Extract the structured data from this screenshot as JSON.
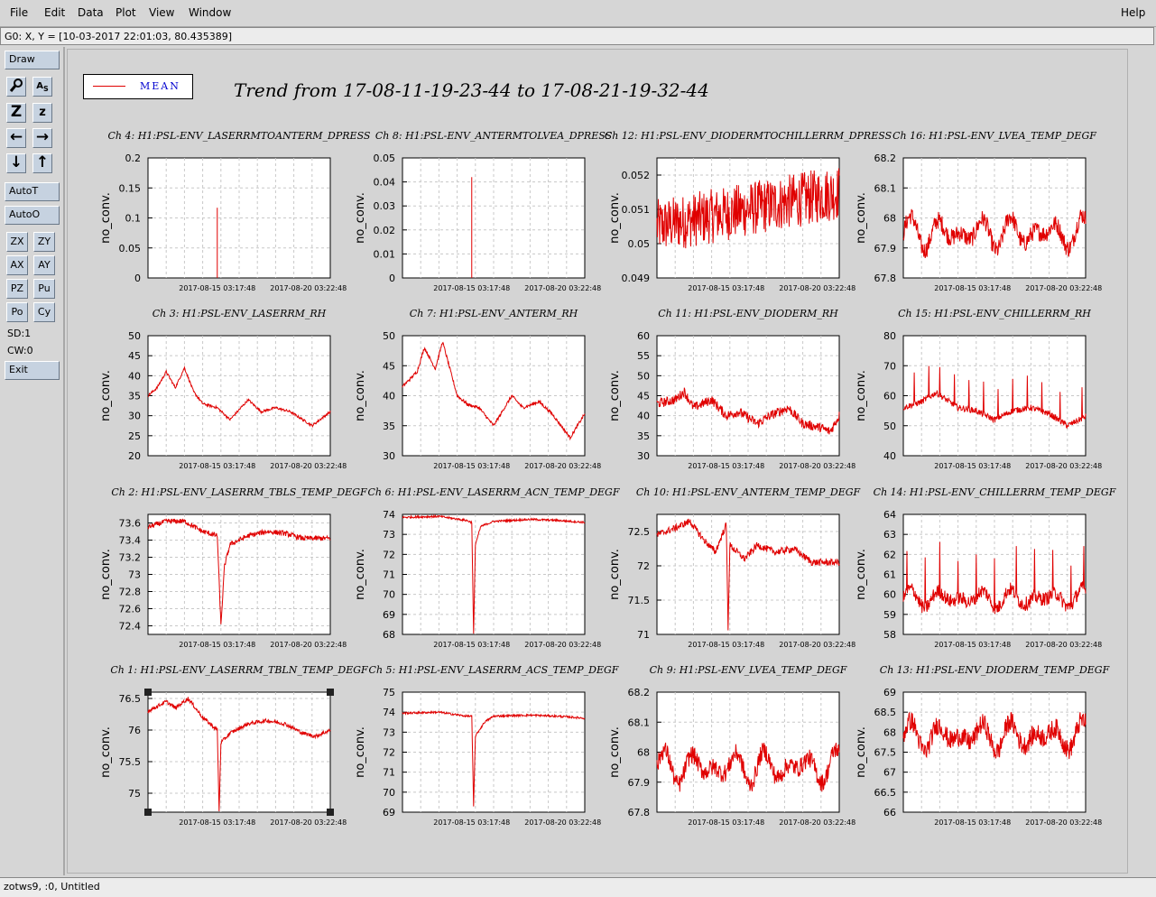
{
  "menu": {
    "file": "File",
    "edit": "Edit",
    "data": "Data",
    "plot": "Plot",
    "view": "View",
    "window": "Window",
    "help": "Help"
  },
  "coord_readout": "G0: X, Y = [10-03-2017 22:01:03, 80.435389]",
  "toolbar": {
    "draw": "Draw",
    "autot": "AutoT",
    "autoo": "AutoO",
    "zx": "ZX",
    "zy": "ZY",
    "ax": "AX",
    "ay": "AY",
    "pz": "PZ",
    "pu": "Pu",
    "po": "Po",
    "cy": "Cy",
    "sd": "SD:1",
    "cw": "CW:0",
    "exit": "Exit",
    "icons": [
      "magnify-icon",
      "text-scale-icon",
      "zoom-z-icon",
      "zoom-small-z-icon",
      "arrow-left-icon",
      "arrow-right-icon",
      "arrow-down-icon",
      "arrow-up-icon"
    ]
  },
  "legend": {
    "label": "MEAN",
    "color": "#e00000"
  },
  "main_title": "Trend from 17-08-11-19-23-44 to 17-08-21-19-32-44",
  "status": "zotws9, :0, Untitled",
  "chart_data": [
    {
      "type": "line",
      "title": "Ch 4: H1:PSL-ENV_LASERRMTOANTERM_DPRESS",
      "ylabel": "no_conv.",
      "x_ticks": [
        "2017-08-15 03:17:48",
        "2017-08-20 03:22:48"
      ],
      "y_ticks": [
        "0",
        "0.05",
        "0.1",
        "0.15",
        "0.2"
      ],
      "ylim": [
        0,
        0.2
      ],
      "pattern": "spike",
      "base": 0,
      "noise": 0,
      "spike_at": 0.38,
      "spike_to": 0.117,
      "color": "#e00000"
    },
    {
      "type": "line",
      "title": "Ch 8: H1:PSL-ENV_ANTERMTOLVEA_DPRESS",
      "ylabel": "no_conv.",
      "x_ticks": [
        "2017-08-15 03:17:48",
        "2017-08-20 03:22:48"
      ],
      "y_ticks": [
        "0",
        "0.01",
        "0.02",
        "0.03",
        "0.04",
        "0.05"
      ],
      "ylim": [
        0,
        0.05
      ],
      "pattern": "spike",
      "base": 0,
      "noise": 0,
      "spike_at": 0.38,
      "spike_to": 0.042,
      "color": "#e00000"
    },
    {
      "type": "line",
      "title": "Ch 12: H1:PSL-ENV_DIODERMTOCHILLERRM_DPRESS",
      "ylabel": "no_conv.",
      "x_ticks": [
        "2017-08-15 03:17:48",
        "2017-08-20 03:22:48"
      ],
      "y_ticks": [
        "0.049",
        "0.05",
        "0.051",
        "0.052"
      ],
      "ylim": [
        0.049,
        0.0525
      ],
      "pattern": "band",
      "base": 0.0505,
      "trend": 0.001,
      "noise": 0.0008,
      "color": "#e00000"
    },
    {
      "type": "line",
      "title": "Ch 16: H1:PSL-ENV_LVEA_TEMP_DEGF",
      "ylabel": "no_conv.",
      "x_ticks": [
        "2017-08-15 03:17:48",
        "2017-08-20 03:22:48"
      ],
      "y_ticks": [
        "67.8",
        "67.9",
        "68",
        "68.1",
        "68.2"
      ],
      "ylim": [
        67.8,
        68.2
      ],
      "pattern": "wavy",
      "base": 67.95,
      "amp": 0.06,
      "noise": 0.03,
      "color": "#e00000"
    },
    {
      "type": "line",
      "title": "Ch 3: H1:PSL-ENV_LASERRM_RH",
      "ylabel": "no_conv.",
      "x_ticks": [
        "2017-08-15 03:17:48",
        "2017-08-20 03:22:48"
      ],
      "y_ticks": [
        "20",
        "25",
        "30",
        "35",
        "40",
        "45",
        "50"
      ],
      "ylim": [
        20,
        50
      ],
      "pattern": "path",
      "path": [
        [
          0,
          35
        ],
        [
          0.05,
          37
        ],
        [
          0.1,
          41
        ],
        [
          0.15,
          37
        ],
        [
          0.2,
          42
        ],
        [
          0.25,
          36
        ],
        [
          0.3,
          33
        ],
        [
          0.38,
          32
        ],
        [
          0.45,
          29
        ],
        [
          0.55,
          34
        ],
        [
          0.62,
          31
        ],
        [
          0.7,
          32
        ],
        [
          0.78,
          31
        ],
        [
          0.85,
          29
        ],
        [
          0.9,
          27.5
        ],
        [
          1,
          31
        ]
      ],
      "noise": 0.3,
      "color": "#e00000"
    },
    {
      "type": "line",
      "title": "Ch 7: H1:PSL-ENV_ANTERM_RH",
      "ylabel": "no_conv.",
      "x_ticks": [
        "2017-08-15 03:17:48",
        "2017-08-20 03:22:48"
      ],
      "y_ticks": [
        "30",
        "35",
        "40",
        "45",
        "50"
      ],
      "ylim": [
        30,
        50
      ],
      "pattern": "path",
      "path": [
        [
          0,
          41.5
        ],
        [
          0.08,
          44
        ],
        [
          0.12,
          48
        ],
        [
          0.18,
          44.5
        ],
        [
          0.22,
          49
        ],
        [
          0.3,
          40
        ],
        [
          0.36,
          38.5
        ],
        [
          0.42,
          38
        ],
        [
          0.5,
          35
        ],
        [
          0.6,
          40
        ],
        [
          0.66,
          38
        ],
        [
          0.75,
          39
        ],
        [
          0.82,
          37
        ],
        [
          0.92,
          33
        ],
        [
          1,
          37
        ]
      ],
      "noise": 0.25,
      "color": "#e00000"
    },
    {
      "type": "line",
      "title": "Ch 11: H1:PSL-ENV_DIODERM_RH",
      "ylabel": "no_conv.",
      "x_ticks": [
        "2017-08-15 03:17:48",
        "2017-08-20 03:22:48"
      ],
      "y_ticks": [
        "30",
        "35",
        "40",
        "45",
        "50",
        "55",
        "60"
      ],
      "ylim": [
        30,
        60
      ],
      "pattern": "path",
      "path": [
        [
          0,
          43
        ],
        [
          0.1,
          44
        ],
        [
          0.15,
          46
        ],
        [
          0.2,
          42
        ],
        [
          0.3,
          44
        ],
        [
          0.38,
          40
        ],
        [
          0.45,
          41
        ],
        [
          0.55,
          38
        ],
        [
          0.62,
          40
        ],
        [
          0.72,
          42
        ],
        [
          0.8,
          38
        ],
        [
          0.9,
          37
        ],
        [
          0.95,
          36
        ],
        [
          1,
          40
        ]
      ],
      "noise": 1.2,
      "color": "#e00000"
    },
    {
      "type": "line",
      "title": "Ch 15: H1:PSL-ENV_CHILLERRM_RH",
      "ylabel": "no_conv.",
      "x_ticks": [
        "2017-08-15 03:17:48",
        "2017-08-20 03:22:48"
      ],
      "y_ticks": [
        "40",
        "50",
        "60",
        "70",
        "80"
      ],
      "ylim": [
        40,
        80
      ],
      "pattern": "path",
      "path": [
        [
          0,
          56
        ],
        [
          0.1,
          58
        ],
        [
          0.18,
          61
        ],
        [
          0.3,
          56
        ],
        [
          0.4,
          55
        ],
        [
          0.5,
          52
        ],
        [
          0.6,
          55
        ],
        [
          0.7,
          56
        ],
        [
          0.8,
          54
        ],
        [
          0.9,
          50
        ],
        [
          1,
          53
        ]
      ],
      "noise": 1.0,
      "spikes": [
        0.06,
        0.14,
        0.2,
        0.28,
        0.36,
        0.44,
        0.52,
        0.6,
        0.68,
        0.76,
        0.86,
        0.98
      ],
      "spike_height": 10,
      "color": "#e00000"
    },
    {
      "type": "line",
      "title": "Ch 2: H1:PSL-ENV_LASERRM_TBLS_TEMP_DEGF",
      "ylabel": "no_conv.",
      "x_ticks": [
        "2017-08-15 03:17:48",
        "2017-08-20 03:22:48"
      ],
      "y_ticks": [
        "72.4",
        "72.6",
        "72.8",
        "73",
        "73.2",
        "73.4",
        "73.6"
      ],
      "ylim": [
        72.3,
        73.7
      ],
      "pattern": "path",
      "path": [
        [
          0,
          73.55
        ],
        [
          0.1,
          73.62
        ],
        [
          0.2,
          73.62
        ],
        [
          0.3,
          73.5
        ],
        [
          0.38,
          73.45
        ],
        [
          0.4,
          72.4
        ],
        [
          0.42,
          73.1
        ],
        [
          0.45,
          73.35
        ],
        [
          0.55,
          73.45
        ],
        [
          0.65,
          73.5
        ],
        [
          0.75,
          73.48
        ],
        [
          0.85,
          73.42
        ],
        [
          1,
          73.42
        ]
      ],
      "noise": 0.03,
      "color": "#e00000"
    },
    {
      "type": "line",
      "title": "Ch 6: H1:PSL-ENV_LASERRM_ACN_TEMP_DEGF",
      "ylabel": "no_conv.",
      "x_ticks": [
        "2017-08-15 03:17:48",
        "2017-08-20 03:22:48"
      ],
      "y_ticks": [
        "68",
        "69",
        "70",
        "71",
        "72",
        "73",
        "74"
      ],
      "ylim": [
        68,
        74
      ],
      "pattern": "path",
      "path": [
        [
          0,
          73.85
        ],
        [
          0.2,
          73.9
        ],
        [
          0.35,
          73.7
        ],
        [
          0.38,
          73.6
        ],
        [
          0.39,
          68
        ],
        [
          0.4,
          72.5
        ],
        [
          0.43,
          73.4
        ],
        [
          0.5,
          73.65
        ],
        [
          0.7,
          73.75
        ],
        [
          0.85,
          73.7
        ],
        [
          1,
          73.6
        ]
      ],
      "noise": 0.05,
      "color": "#e00000"
    },
    {
      "type": "line",
      "title": "Ch 10: H1:PSL-ENV_ANTERM_TEMP_DEGF",
      "ylabel": "no_conv.",
      "x_ticks": [
        "2017-08-15 03:17:48",
        "2017-08-20 03:22:48"
      ],
      "y_ticks": [
        "71",
        "71.5",
        "72",
        "72.5"
      ],
      "ylim": [
        71,
        72.75
      ],
      "pattern": "path",
      "path": [
        [
          0,
          72.45
        ],
        [
          0.1,
          72.55
        ],
        [
          0.18,
          72.65
        ],
        [
          0.25,
          72.4
        ],
        [
          0.32,
          72.2
        ],
        [
          0.38,
          72.6
        ],
        [
          0.39,
          71.1
        ],
        [
          0.4,
          72.3
        ],
        [
          0.48,
          72.1
        ],
        [
          0.55,
          72.3
        ],
        [
          0.65,
          72.2
        ],
        [
          0.75,
          72.25
        ],
        [
          0.85,
          72.05
        ],
        [
          1,
          72.05
        ]
      ],
      "noise": 0.05,
      "color": "#e00000"
    },
    {
      "type": "line",
      "title": "Ch 14: H1:PSL-ENV_CHILLERRM_TEMP_DEGF",
      "ylabel": "no_conv.",
      "x_ticks": [
        "2017-08-15 03:17:48",
        "2017-08-20 03:22:48"
      ],
      "y_ticks": [
        "58",
        "59",
        "60",
        "61",
        "62",
        "63",
        "64"
      ],
      "ylim": [
        58,
        64
      ],
      "pattern": "wavy",
      "base": 59.8,
      "amp": 0.5,
      "noise": 0.35,
      "spikes": [
        0.02,
        0.12,
        0.2,
        0.3,
        0.4,
        0.5,
        0.62,
        0.72,
        0.82,
        0.92,
        0.99
      ],
      "spike_height": 2.2,
      "color": "#e00000"
    },
    {
      "type": "line",
      "title": "Ch 1: H1:PSL-ENV_LASERRM_TBLN_TEMP_DEGF",
      "ylabel": "no_conv.",
      "x_ticks": [
        "2017-08-15 03:17:48",
        "2017-08-20 03:22:48"
      ],
      "y_ticks": [
        "75",
        "75.5",
        "76",
        "76.5"
      ],
      "ylim": [
        74.7,
        76.6
      ],
      "pattern": "path",
      "path": [
        [
          0,
          76.3
        ],
        [
          0.1,
          76.45
        ],
        [
          0.15,
          76.35
        ],
        [
          0.22,
          76.5
        ],
        [
          0.3,
          76.2
        ],
        [
          0.38,
          76.0
        ],
        [
          0.39,
          74.7
        ],
        [
          0.4,
          75.8
        ],
        [
          0.45,
          75.95
        ],
        [
          0.55,
          76.1
        ],
        [
          0.65,
          76.15
        ],
        [
          0.75,
          76.1
        ],
        [
          0.85,
          75.95
        ],
        [
          0.92,
          75.9
        ],
        [
          1,
          76.0
        ]
      ],
      "noise": 0.03,
      "selected": true,
      "color": "#e00000"
    },
    {
      "type": "line",
      "title": "Ch 5: H1:PSL-ENV_LASERRM_ACS_TEMP_DEGF",
      "ylabel": "no_conv.",
      "x_ticks": [
        "2017-08-15 03:17:48",
        "2017-08-20 03:22:48"
      ],
      "y_ticks": [
        "69",
        "70",
        "71",
        "72",
        "73",
        "74",
        "75"
      ],
      "ylim": [
        69,
        75
      ],
      "pattern": "path",
      "path": [
        [
          0,
          73.95
        ],
        [
          0.2,
          74
        ],
        [
          0.35,
          73.8
        ],
        [
          0.38,
          73.8
        ],
        [
          0.39,
          69.3
        ],
        [
          0.4,
          72.8
        ],
        [
          0.45,
          73.5
        ],
        [
          0.5,
          73.8
        ],
        [
          0.7,
          73.85
        ],
        [
          0.85,
          73.8
        ],
        [
          1,
          73.7
        ]
      ],
      "noise": 0.05,
      "color": "#e00000"
    },
    {
      "type": "line",
      "title": "Ch 9: H1:PSL-ENV_LVEA_TEMP_DEGF",
      "ylabel": "no_conv.",
      "x_ticks": [
        "2017-08-15 03:17:48",
        "2017-08-20 03:22:48"
      ],
      "y_ticks": [
        "67.8",
        "67.9",
        "68",
        "68.1",
        "68.2"
      ],
      "ylim": [
        67.8,
        68.2
      ],
      "pattern": "wavy",
      "base": 67.95,
      "amp": 0.06,
      "noise": 0.03,
      "color": "#e00000"
    },
    {
      "type": "line",
      "title": "Ch 13: H1:PSL-ENV_DIODERM_TEMP_DEGF",
      "ylabel": "no_conv.",
      "x_ticks": [
        "2017-08-15 03:17:48",
        "2017-08-20 03:22:48"
      ],
      "y_ticks": [
        "66",
        "66.5",
        "67",
        "67.5",
        "68",
        "68.5",
        "69"
      ],
      "ylim": [
        66,
        69
      ],
      "pattern": "wavy",
      "base": 67.9,
      "amp": 0.4,
      "noise": 0.25,
      "color": "#e00000"
    }
  ]
}
